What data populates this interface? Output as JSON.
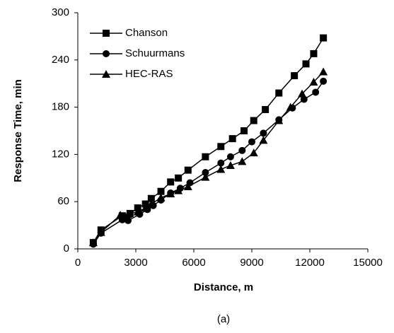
{
  "chart_data": {
    "type": "line",
    "x_label": "Distance, m",
    "y_label": "Response Time, min",
    "caption": "(a)",
    "xlim": [
      0,
      15000
    ],
    "xticks": [
      0,
      3000,
      6000,
      9000,
      12000,
      15000
    ],
    "ylim": [
      0,
      300
    ],
    "yticks": [
      0,
      60,
      120,
      180,
      240,
      300
    ],
    "legend": "top-left",
    "series": [
      {
        "name": "Chanson",
        "color": "#000000",
        "marker": "square",
        "x": [
          800,
          1200,
          2300,
          2700,
          3100,
          3500,
          3800,
          4300,
          4800,
          5200,
          5700,
          6600,
          7400,
          8000,
          8600,
          9100,
          9700,
          10400,
          11200,
          11800,
          12200,
          12700
        ],
        "values": [
          8,
          24,
          42,
          45,
          52,
          57,
          64,
          73,
          85,
          90,
          100,
          117,
          130,
          140,
          150,
          163,
          177,
          198,
          220,
          235,
          248,
          268
        ]
      },
      {
        "name": "Schuurmans",
        "color": "#000000",
        "marker": "circle",
        "x": [
          800,
          1200,
          2300,
          2600,
          3200,
          3600,
          3900,
          4300,
          4800,
          5300,
          5800,
          6600,
          7400,
          7900,
          8500,
          9000,
          9600,
          10400,
          11100,
          11700,
          12300,
          12700
        ],
        "values": [
          6,
          20,
          37,
          36,
          44,
          50,
          55,
          62,
          71,
          77,
          84,
          97,
          109,
          117,
          125,
          136,
          147,
          164,
          179,
          190,
          199,
          213
        ]
      },
      {
        "name": "HEC-RAS",
        "color": "#000000",
        "marker": "triangle",
        "x": [
          800,
          1200,
          2200,
          2600,
          3100,
          3500,
          3800,
          4300,
          4800,
          5200,
          5700,
          6600,
          7400,
          7900,
          8500,
          9100,
          9600,
          10400,
          11000,
          11600,
          12200,
          12700
        ],
        "values": [
          8,
          21,
          43,
          44,
          47,
          52,
          57,
          65,
          70,
          74,
          79,
          91,
          101,
          106,
          111,
          122,
          138,
          163,
          180,
          197,
          212,
          225
        ]
      }
    ]
  }
}
